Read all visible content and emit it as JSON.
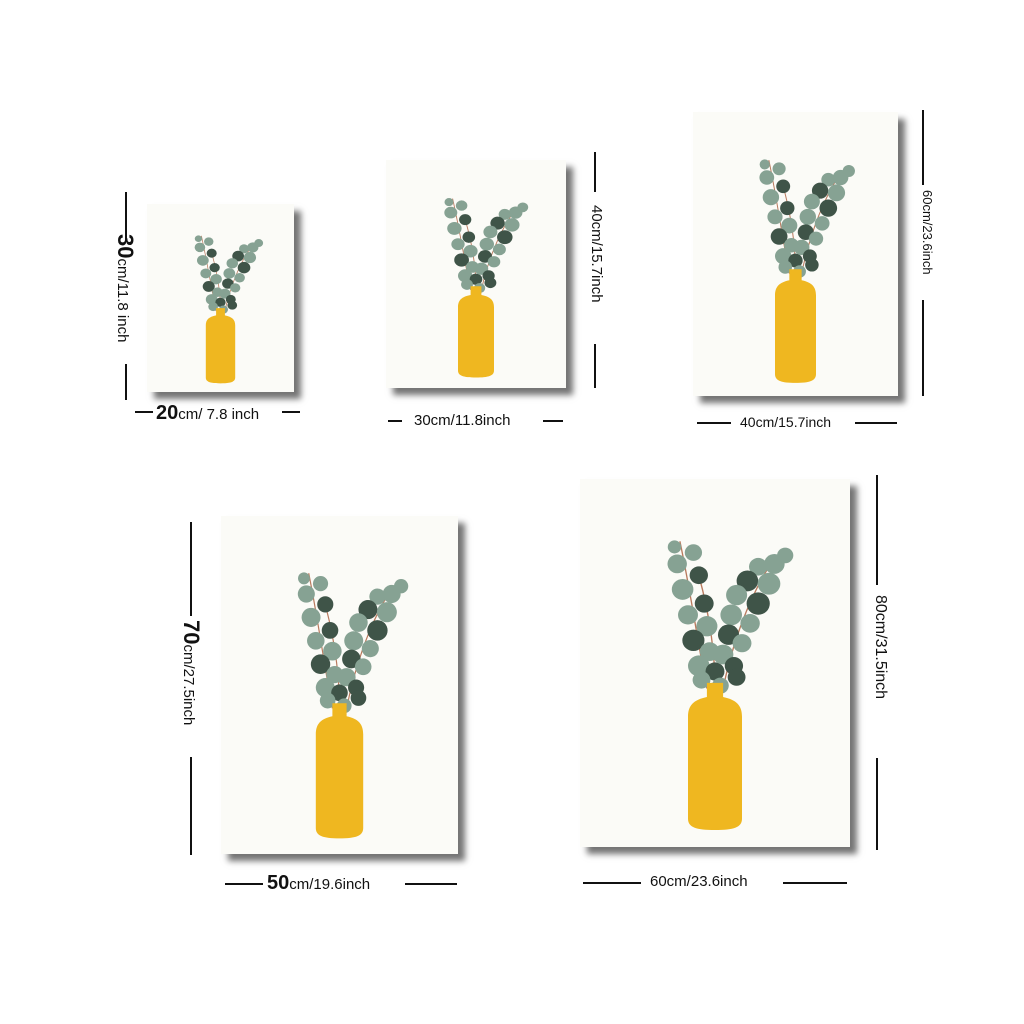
{
  "colors": {
    "vase": "#efb720",
    "leaf_light": "#86a293",
    "leaf_dark": "#3f5448",
    "stem": "#b97a5e",
    "paper": "#fbfbf7"
  },
  "prints": [
    {
      "width_label": "20cm/ 7.8 inch",
      "width_value": "20",
      "width_unit": "cm/ 7.8 inch",
      "height_label": "30cm/11.8 inch",
      "height_value": "30",
      "height_unit": "cm/11.8 inch"
    },
    {
      "width_label": "30cm/11.8inch",
      "height_label": "40cm/15.7inch"
    },
    {
      "width_label": "40cm/15.7inch",
      "height_label": "60cm/23.6inch"
    },
    {
      "width_label": "50cm/19.6inch",
      "width_value": "50",
      "width_unit": "cm/19.6inch",
      "height_label": "70cm/27.5inch",
      "height_value": "70",
      "height_unit": "cm/27.5inch"
    },
    {
      "width_label": "60cm/23.6inch",
      "height_label": "80cm/31.5inch"
    }
  ]
}
